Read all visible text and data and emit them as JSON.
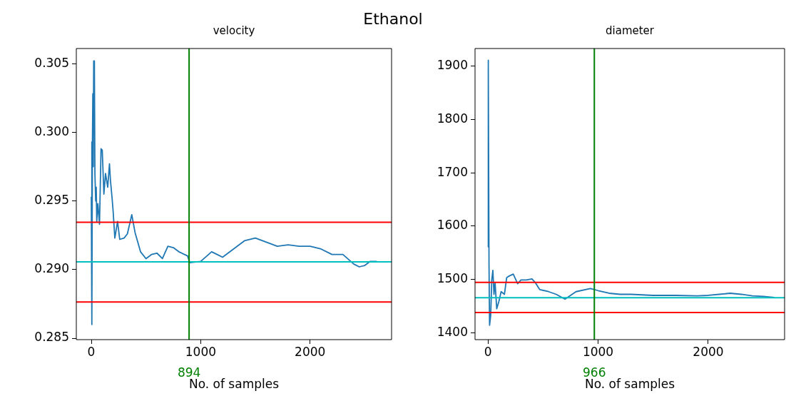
{
  "chart_data": [
    {
      "type": "line",
      "title": "velocity",
      "annotations": [
        "Ethanol"
      ],
      "xlabel": "No. of samples",
      "grid": false,
      "legend": false,
      "marker": "none",
      "line_style": "solid",
      "xlim": [
        -137,
        2745
      ],
      "xticks": [
        0,
        1000,
        2000
      ],
      "ylim": [
        0.2849,
        0.3061
      ],
      "yticks": [
        {
          "value": 0.285,
          "label": "0.285"
        },
        {
          "value": 0.29,
          "label": "0.290"
        },
        {
          "value": 0.295,
          "label": "0.295"
        },
        {
          "value": 0.3,
          "label": "0.300"
        },
        {
          "value": 0.305,
          "label": "0.305"
        }
      ],
      "series": [
        {
          "color": "#1f77b4",
          "x": [
            0,
            4,
            6,
            10,
            14,
            18,
            22,
            28,
            33,
            40,
            45,
            50,
            60,
            75,
            89,
            100,
            115,
            130,
            150,
            166,
            175,
            190,
            200,
            215,
            240,
            260,
            300,
            330,
            370,
            400,
            450,
            500,
            550,
            600,
            650,
            700,
            750,
            800,
            880,
            900,
            1000,
            1100,
            1150,
            1200,
            1300,
            1400,
            1500,
            1600,
            1700,
            1800,
            1900,
            2000,
            2100,
            2200,
            2300,
            2400,
            2450,
            2500,
            2550,
            2610
          ],
          "values": [
            0.2953,
            0.2993,
            0.286,
            0.299,
            0.3028,
            0.2975,
            0.3052,
            0.3052,
            0.297,
            0.295,
            0.296,
            0.2935,
            0.2948,
            0.2933,
            0.2988,
            0.2987,
            0.2955,
            0.297,
            0.296,
            0.2977,
            0.2965,
            0.2952,
            0.2942,
            0.2923,
            0.2935,
            0.2922,
            0.2923,
            0.2926,
            0.294,
            0.2927,
            0.2913,
            0.2908,
            0.2911,
            0.2912,
            0.2908,
            0.2917,
            0.2916,
            0.2913,
            0.291,
            0.2905,
            0.2906,
            0.2913,
            0.2911,
            0.2909,
            0.2915,
            0.2921,
            0.2923,
            0.292,
            0.2917,
            0.2918,
            0.2917,
            0.2917,
            0.2915,
            0.2911,
            0.2911,
            0.2904,
            0.2902,
            0.2903,
            0.2906,
            0.2906
          ]
        }
      ],
      "ref_lines": [
        {
          "axis": "y",
          "value": 0.29345,
          "color": "#ff0000"
        },
        {
          "axis": "y",
          "value": 0.29056,
          "color": "#00bfbf"
        },
        {
          "axis": "y",
          "value": 0.28764,
          "color": "#ff0000"
        },
        {
          "axis": "x",
          "value": 894,
          "label": "894",
          "color": "#008000"
        }
      ]
    },
    {
      "type": "line",
      "title": "diameter",
      "xlabel": "No. of samples",
      "grid": false,
      "legend": false,
      "marker": "none",
      "line_style": "solid",
      "xlim": [
        -117,
        2693
      ],
      "xticks": [
        0,
        1000,
        2000
      ],
      "ylim": [
        1387,
        1933
      ],
      "yticks": [
        1400,
        1500,
        1600,
        1700,
        1800,
        1900
      ],
      "series": [
        {
          "color": "#1f77b4",
          "x": [
            0,
            2,
            5,
            10,
            15,
            25,
            35,
            45,
            55,
            65,
            80,
            100,
            120,
            150,
            170,
            190,
            230,
            270,
            300,
            350,
            400,
            430,
            470,
            550,
            620,
            700,
            800,
            930,
            1000,
            1100,
            1200,
            1300,
            1500,
            1700,
            1900,
            2000,
            2100,
            2200,
            2300,
            2400,
            2500,
            2600
          ],
          "values": [
            1561,
            1911,
            1904,
            1526,
            1414,
            1432,
            1499,
            1517,
            1472,
            1494,
            1445,
            1459,
            1477,
            1472,
            1503,
            1506,
            1510,
            1492,
            1499,
            1499,
            1501,
            1494,
            1481,
            1477,
            1472,
            1463,
            1477,
            1483,
            1479,
            1474,
            1472,
            1472,
            1470,
            1470,
            1469,
            1470,
            1472,
            1474,
            1472,
            1469,
            1468,
            1466
          ]
        }
      ],
      "ref_lines": [
        {
          "axis": "y",
          "value": 1494.5,
          "color": "#ff0000"
        },
        {
          "axis": "y",
          "value": 1465.5,
          "color": "#00bfbf"
        },
        {
          "axis": "y",
          "value": 1438,
          "color": "#ff0000"
        },
        {
          "axis": "x",
          "value": 966,
          "label": "966",
          "color": "#008000"
        }
      ]
    }
  ]
}
